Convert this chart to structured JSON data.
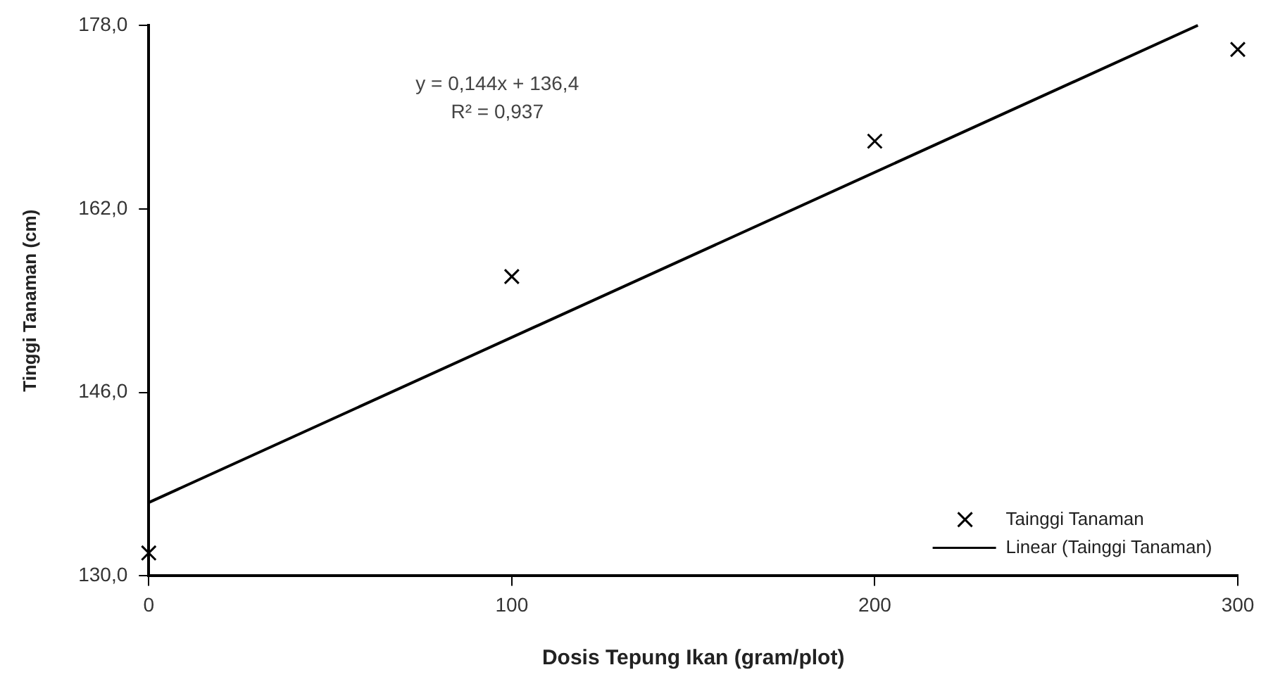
{
  "chart_data": {
    "type": "scatter",
    "xlabel": "Dosis Tepung Ikan (gram/plot)",
    "ylabel": "Tinggi Tanaman (cm)",
    "series": [
      {
        "name": "Tainggi Tanaman",
        "color": "#000000",
        "x": [
          0,
          100,
          200,
          300
        ],
        "values": [
          132,
          156.1,
          167.9,
          175.9
        ],
        "marker": "cross"
      },
      {
        "name": "Linear (Tainggi Tanaman)",
        "type": "line",
        "color": "#000000",
        "x": [
          0,
          289
        ],
        "values": [
          136.4,
          178
        ],
        "marker": "none",
        "line_style": "solid"
      }
    ],
    "xlim": [
      0,
      300
    ],
    "xticks": [
      0,
      100,
      200,
      300
    ],
    "ylim": [
      130,
      178
    ],
    "yticks": [
      {
        "value": 130,
        "label": "130,0"
      },
      {
        "value": 146,
        "label": "146,0"
      },
      {
        "value": 162,
        "label": "162,0"
      },
      {
        "value": 178,
        "label": "178,0"
      }
    ],
    "grid": false,
    "legend": "bottom right",
    "annotations": [
      "y = 0,144x + 136,4",
      "R² = 0,937"
    ]
  }
}
